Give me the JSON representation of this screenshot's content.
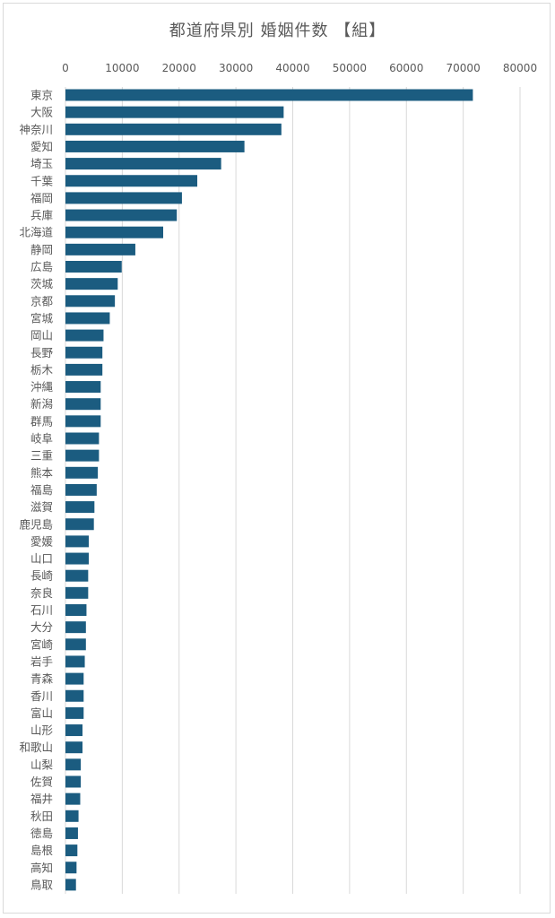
{
  "chart_data": {
    "type": "bar",
    "orientation": "horizontal",
    "title": "都道府県別 婚姻件数 【組】",
    "xlabel": "",
    "ylabel": "",
    "xlim": [
      0,
      80000
    ],
    "ticks": [
      "0",
      "10000",
      "20000",
      "30000",
      "40000",
      "50000",
      "60000",
      "70000",
      "80000"
    ],
    "tick_values": [
      0,
      10000,
      20000,
      30000,
      40000,
      50000,
      60000,
      70000,
      80000
    ],
    "grid": true,
    "bar_color": "#1b5c80",
    "categories": [
      "東京",
      "大阪",
      "神奈川",
      "愛知",
      "埼玉",
      "千葉",
      "福岡",
      "兵庫",
      "北海道",
      "静岡",
      "広島",
      "茨城",
      "京都",
      "宮城",
      "岡山",
      "長野",
      "栃木",
      "沖縄",
      "新潟",
      "群馬",
      "岐阜",
      "三重",
      "熊本",
      "福島",
      "滋賀",
      "鹿児島",
      "愛媛",
      "山口",
      "長崎",
      "奈良",
      "石川",
      "大分",
      "宮崎",
      "岩手",
      "青森",
      "香川",
      "富山",
      "山形",
      "和歌山",
      "山梨",
      "佐賀",
      "福井",
      "秋田",
      "徳島",
      "島根",
      "高知",
      "鳥取"
    ],
    "values": [
      71700,
      38400,
      38000,
      31500,
      27400,
      23200,
      20500,
      19600,
      17200,
      12300,
      9900,
      9200,
      8700,
      7800,
      6700,
      6500,
      6500,
      6200,
      6200,
      6200,
      5900,
      5900,
      5700,
      5500,
      5100,
      5000,
      4100,
      4100,
      4000,
      4000,
      3700,
      3600,
      3600,
      3400,
      3200,
      3200,
      3200,
      3000,
      3000,
      2700,
      2700,
      2600,
      2300,
      2200,
      2100,
      1950,
      1850
    ]
  }
}
